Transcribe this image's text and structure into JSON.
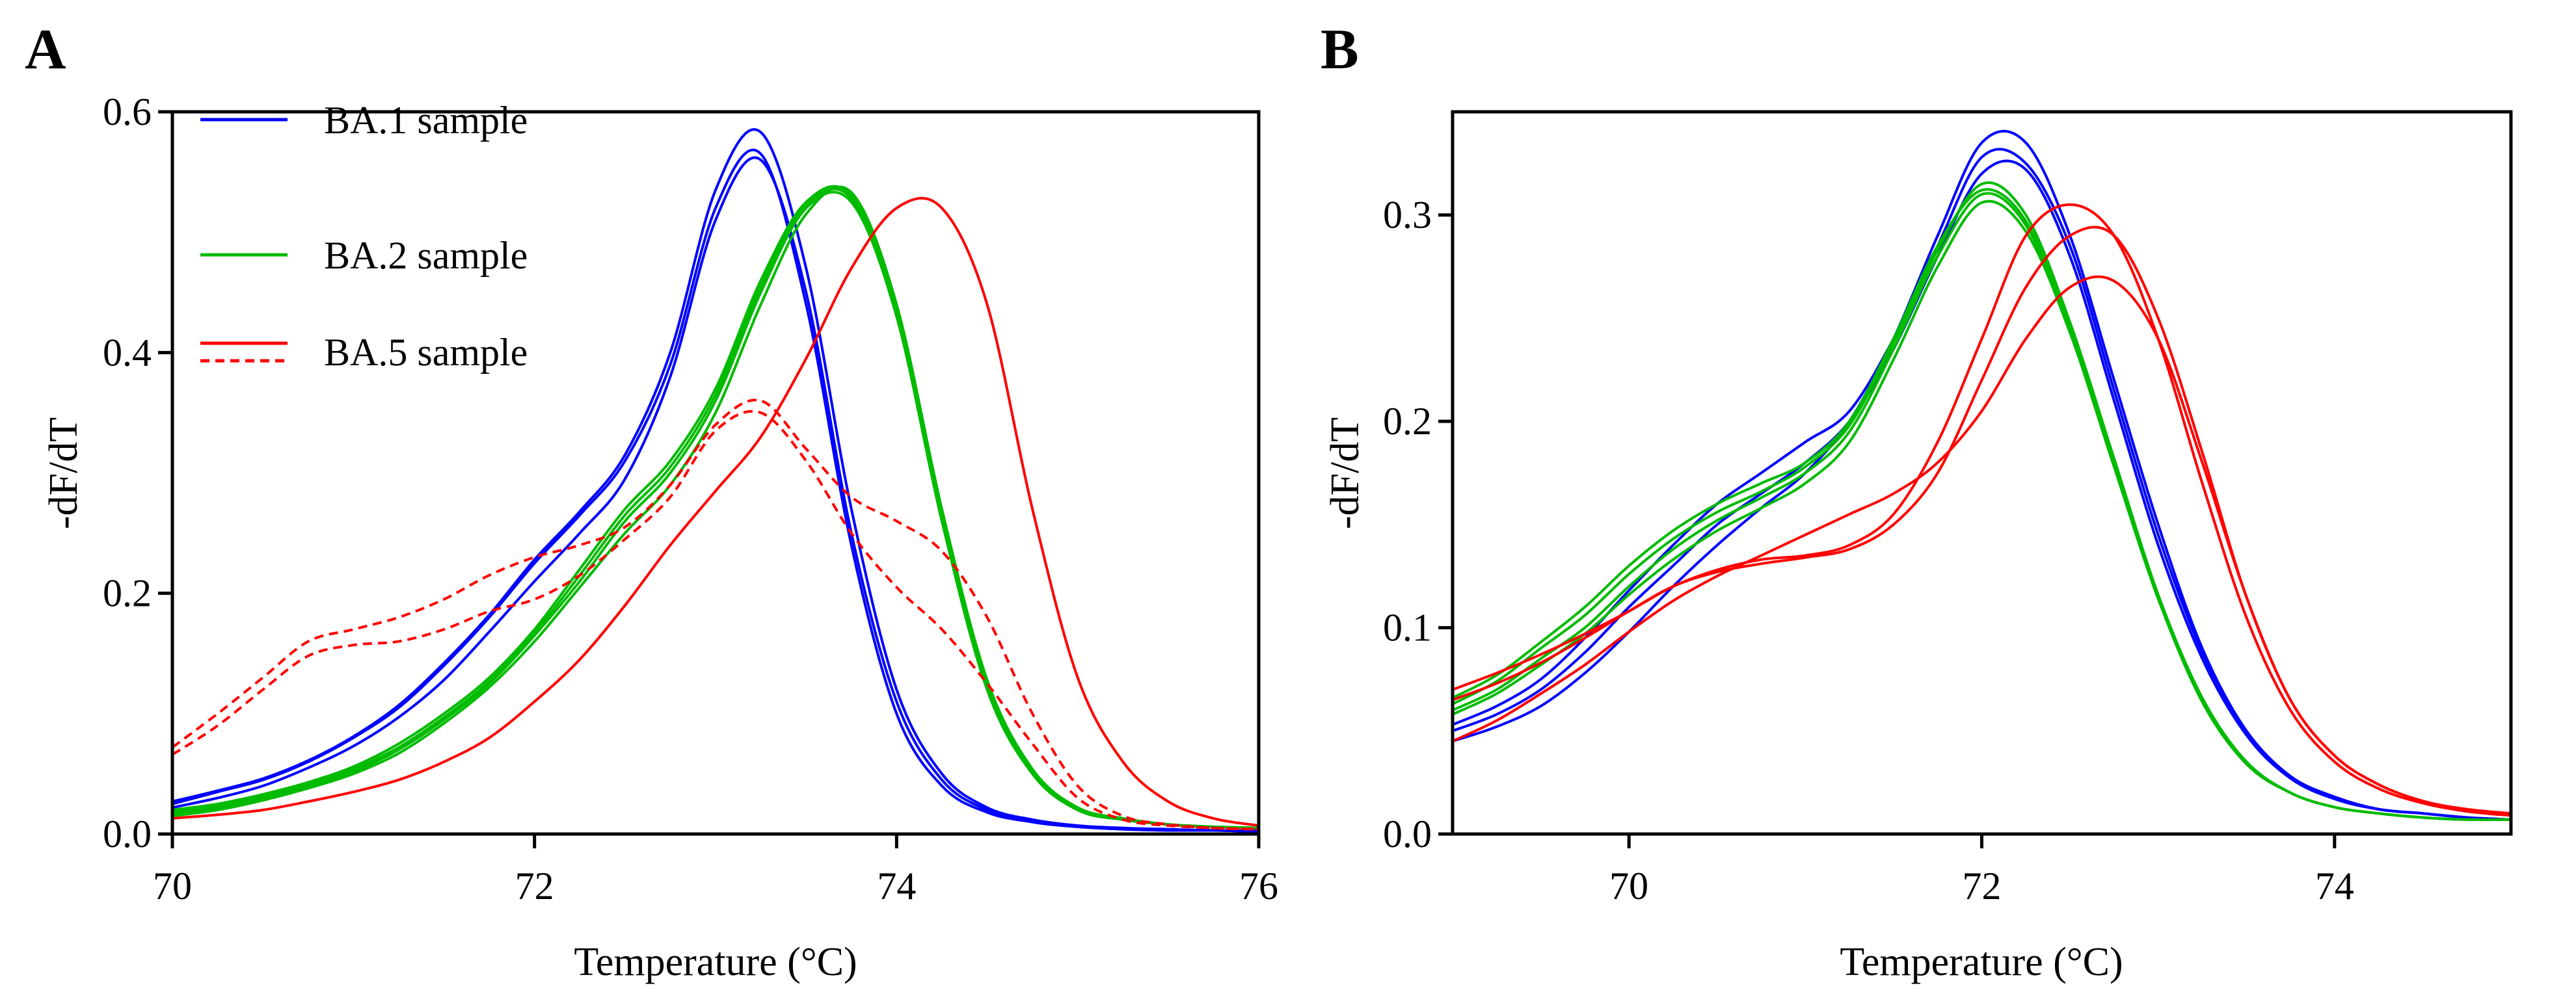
{
  "chart_data": [
    {
      "panel": "A",
      "type": "line",
      "xlabel": "Temperature (°C)",
      "ylabel": "-dF/dT",
      "xlim": [
        70,
        76
      ],
      "ylim": [
        0,
        0.6
      ],
      "xticks": [
        "70",
        "72",
        "74",
        "76"
      ],
      "yticks": [
        "0.0",
        "0.2",
        "0.4",
        "0.6"
      ],
      "grid": false,
      "legend": {
        "placement": "top-left",
        "entries": [
          {
            "label": "BA.1 sample",
            "color": "#0000ff",
            "style": "solid"
          },
          {
            "label": "BA.2 sample",
            "color": "#00bb00",
            "style": "solid"
          },
          {
            "label": "BA.5 sample",
            "color": "#ff0000",
            "style": "solid+dashed"
          }
        ]
      },
      "x": [
        70,
        70.25,
        70.5,
        70.75,
        71,
        71.25,
        71.5,
        71.75,
        72,
        72.25,
        72.5,
        72.75,
        73,
        73.25,
        73.5,
        73.75,
        74,
        74.25,
        74.5,
        74.75,
        75,
        75.25,
        75.5,
        75.75,
        76
      ],
      "series": [
        {
          "name": "BA.1 sample",
          "color": "#0000ff",
          "dash": false,
          "values": [
            0.025,
            0.035,
            0.045,
            0.06,
            0.08,
            0.105,
            0.14,
            0.18,
            0.225,
            0.265,
            0.31,
            0.39,
            0.52,
            0.565,
            0.44,
            0.24,
            0.1,
            0.04,
            0.018,
            0.01,
            0.006,
            0.004,
            0.003,
            0.003,
            0.002
          ]
        },
        {
          "name": "BA.1 sample",
          "color": "#0000ff",
          "dash": false,
          "values": [
            0.027,
            0.036,
            0.046,
            0.061,
            0.081,
            0.107,
            0.142,
            0.182,
            0.228,
            0.268,
            0.315,
            0.4,
            0.535,
            0.583,
            0.47,
            0.27,
            0.12,
            0.05,
            0.022,
            0.012,
            0.007,
            0.005,
            0.004,
            0.003,
            0.003
          ]
        },
        {
          "name": "BA.1 sample",
          "color": "#0000ff",
          "dash": false,
          "values": [
            0.022,
            0.03,
            0.04,
            0.055,
            0.073,
            0.097,
            0.128,
            0.168,
            0.21,
            0.25,
            0.295,
            0.38,
            0.51,
            0.56,
            0.45,
            0.25,
            0.11,
            0.045,
            0.02,
            0.01,
            0.006,
            0.004,
            0.003,
            0.003,
            0.002
          ]
        },
        {
          "name": "BA.2 sample",
          "color": "#00bb00",
          "dash": false,
          "values": [
            0.017,
            0.022,
            0.03,
            0.04,
            0.052,
            0.07,
            0.095,
            0.125,
            0.165,
            0.21,
            0.26,
            0.3,
            0.36,
            0.45,
            0.52,
            0.525,
            0.43,
            0.26,
            0.12,
            0.05,
            0.02,
            0.012,
            0.008,
            0.006,
            0.005
          ]
        },
        {
          "name": "BA.2 sample",
          "color": "#00bb00",
          "dash": false,
          "values": [
            0.02,
            0.025,
            0.033,
            0.043,
            0.056,
            0.075,
            0.1,
            0.13,
            0.17,
            0.22,
            0.27,
            0.31,
            0.37,
            0.46,
            0.525,
            0.53,
            0.435,
            0.265,
            0.125,
            0.052,
            0.021,
            0.012,
            0.008,
            0.006,
            0.005
          ]
        },
        {
          "name": "BA.2 sample",
          "color": "#00bb00",
          "dash": false,
          "values": [
            0.015,
            0.02,
            0.028,
            0.038,
            0.05,
            0.067,
            0.092,
            0.122,
            0.16,
            0.205,
            0.25,
            0.29,
            0.35,
            0.44,
            0.515,
            0.533,
            0.44,
            0.27,
            0.128,
            0.054,
            0.022,
            0.013,
            0.008,
            0.006,
            0.005
          ]
        },
        {
          "name": "BA.2 sample",
          "color": "#00bb00",
          "dash": false,
          "values": [
            0.018,
            0.023,
            0.031,
            0.041,
            0.054,
            0.072,
            0.097,
            0.127,
            0.167,
            0.215,
            0.265,
            0.305,
            0.365,
            0.455,
            0.522,
            0.528,
            0.432,
            0.262,
            0.122,
            0.051,
            0.02,
            0.012,
            0.008,
            0.006,
            0.005
          ]
        },
        {
          "name": "BA.5 sample",
          "color": "#ff0000",
          "dash": false,
          "values": [
            0.013,
            0.016,
            0.02,
            0.027,
            0.035,
            0.045,
            0.06,
            0.08,
            0.11,
            0.145,
            0.19,
            0.24,
            0.285,
            0.33,
            0.395,
            0.47,
            0.52,
            0.52,
            0.44,
            0.27,
            0.13,
            0.06,
            0.027,
            0.013,
            0.007
          ]
        },
        {
          "name": "BA.5 sample",
          "color": "#ff0000",
          "dash": true,
          "values": [
            0.072,
            0.1,
            0.13,
            0.16,
            0.17,
            0.18,
            0.195,
            0.215,
            0.23,
            0.24,
            0.255,
            0.29,
            0.34,
            0.36,
            0.32,
            0.28,
            0.26,
            0.235,
            0.18,
            0.1,
            0.04,
            0.015,
            0.008,
            0.005,
            0.004
          ]
        },
        {
          "name": "BA.5 sample",
          "color": "#ff0000",
          "dash": true,
          "values": [
            0.066,
            0.09,
            0.12,
            0.148,
            0.157,
            0.16,
            0.17,
            0.185,
            0.195,
            0.215,
            0.245,
            0.28,
            0.335,
            0.35,
            0.31,
            0.25,
            0.205,
            0.17,
            0.125,
            0.075,
            0.03,
            0.012,
            0.007,
            0.005,
            0.004
          ]
        }
      ]
    },
    {
      "panel": "B",
      "type": "line",
      "xlabel": "Temperature (°C)",
      "ylabel": "-dF/dT",
      "xlim": [
        69,
        75
      ],
      "ylim": [
        0,
        0.35
      ],
      "xticks": [
        "70",
        "72",
        "74"
      ],
      "yticks": [
        "0.0",
        "0.1",
        "0.2",
        "0.3"
      ],
      "grid": false,
      "x": [
        69,
        69.25,
        69.5,
        69.75,
        70,
        70.25,
        70.5,
        70.75,
        71,
        71.25,
        71.5,
        71.75,
        72,
        72.25,
        72.5,
        72.75,
        73,
        73.25,
        73.5,
        73.75,
        74,
        74.25,
        74.5,
        74.75,
        75
      ],
      "series": [
        {
          "name": "BA.1 sample",
          "color": "#0000ff",
          "dash": false,
          "values": [
            0.045,
            0.052,
            0.062,
            0.078,
            0.098,
            0.12,
            0.14,
            0.158,
            0.175,
            0.2,
            0.24,
            0.29,
            0.335,
            0.335,
            0.29,
            0.22,
            0.15,
            0.09,
            0.05,
            0.028,
            0.018,
            0.012,
            0.01,
            0.008,
            0.007
          ]
        },
        {
          "name": "BA.1 sample",
          "color": "#0000ff",
          "dash": false,
          "values": [
            0.05,
            0.058,
            0.07,
            0.088,
            0.11,
            0.13,
            0.15,
            0.165,
            0.18,
            0.2,
            0.235,
            0.28,
            0.32,
            0.322,
            0.28,
            0.21,
            0.14,
            0.085,
            0.048,
            0.027,
            0.017,
            0.012,
            0.01,
            0.008,
            0.007
          ]
        },
        {
          "name": "BA.1 sample",
          "color": "#0000ff",
          "dash": false,
          "values": [
            0.053,
            0.062,
            0.075,
            0.095,
            0.118,
            0.14,
            0.16,
            0.175,
            0.19,
            0.205,
            0.24,
            0.285,
            0.328,
            0.325,
            0.285,
            0.215,
            0.145,
            0.088,
            0.05,
            0.028,
            0.018,
            0.012,
            0.01,
            0.008,
            0.007
          ]
        },
        {
          "name": "BA.2 sample",
          "color": "#00bb00",
          "dash": false,
          "values": [
            0.06,
            0.07,
            0.085,
            0.1,
            0.12,
            0.138,
            0.152,
            0.163,
            0.175,
            0.195,
            0.235,
            0.28,
            0.31,
            0.295,
            0.245,
            0.18,
            0.115,
            0.065,
            0.035,
            0.02,
            0.013,
            0.01,
            0.008,
            0.007,
            0.007
          ]
        },
        {
          "name": "BA.2 sample",
          "color": "#00bb00",
          "dash": false,
          "values": [
            0.063,
            0.074,
            0.09,
            0.106,
            0.126,
            0.143,
            0.156,
            0.166,
            0.178,
            0.198,
            0.238,
            0.283,
            0.315,
            0.3,
            0.248,
            0.182,
            0.116,
            0.066,
            0.035,
            0.02,
            0.013,
            0.01,
            0.008,
            0.007,
            0.007
          ]
        },
        {
          "name": "BA.2 sample",
          "color": "#00bb00",
          "dash": false,
          "values": [
            0.058,
            0.068,
            0.082,
            0.097,
            0.116,
            0.133,
            0.147,
            0.158,
            0.17,
            0.19,
            0.23,
            0.275,
            0.306,
            0.292,
            0.243,
            0.178,
            0.114,
            0.064,
            0.034,
            0.02,
            0.013,
            0.01,
            0.008,
            0.007,
            0.007
          ]
        },
        {
          "name": "BA.2 sample",
          "color": "#00bb00",
          "dash": false,
          "values": [
            0.066,
            0.077,
            0.093,
            0.11,
            0.13,
            0.147,
            0.16,
            0.17,
            0.18,
            0.2,
            0.24,
            0.285,
            0.312,
            0.297,
            0.246,
            0.18,
            0.115,
            0.065,
            0.035,
            0.02,
            0.013,
            0.01,
            0.008,
            0.007,
            0.007
          ]
        },
        {
          "name": "BA.5 sample",
          "color": "#ff0000",
          "dash": false,
          "values": [
            0.07,
            0.078,
            0.087,
            0.097,
            0.108,
            0.12,
            0.128,
            0.133,
            0.135,
            0.14,
            0.155,
            0.19,
            0.24,
            0.29,
            0.305,
            0.29,
            0.24,
            0.17,
            0.105,
            0.06,
            0.035,
            0.022,
            0.015,
            0.011,
            0.009
          ]
        },
        {
          "name": "BA.5 sample",
          "color": "#ff0000",
          "dash": false,
          "values": [
            0.065,
            0.073,
            0.083,
            0.095,
            0.108,
            0.12,
            0.127,
            0.131,
            0.134,
            0.138,
            0.15,
            0.175,
            0.22,
            0.265,
            0.29,
            0.29,
            0.25,
            0.185,
            0.115,
            0.065,
            0.038,
            0.024,
            0.016,
            0.012,
            0.01
          ]
        },
        {
          "name": "BA.5 sample",
          "color": "#ff0000",
          "dash": false,
          "values": [
            0.045,
            0.055,
            0.068,
            0.082,
            0.098,
            0.113,
            0.125,
            0.135,
            0.145,
            0.155,
            0.165,
            0.18,
            0.205,
            0.24,
            0.265,
            0.268,
            0.24,
            0.18,
            0.115,
            0.065,
            0.038,
            0.024,
            0.016,
            0.012,
            0.01
          ]
        }
      ]
    }
  ]
}
